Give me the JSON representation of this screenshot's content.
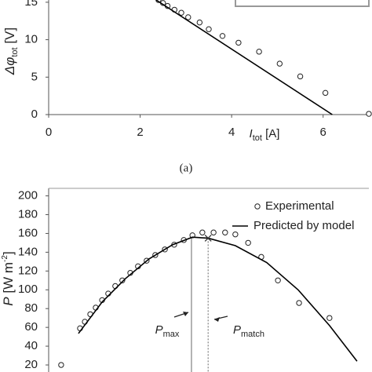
{
  "chart_data": [
    {
      "type": "line",
      "x_label": {
        "main": "I",
        "sub": "tot",
        "unit": " [A]"
      },
      "y_label": {
        "main": "Δφ",
        "sub": "tot",
        "unit": " [V]"
      },
      "caption": "(a)",
      "xlim": [
        0,
        7
      ],
      "xticks": [
        0,
        2,
        4,
        6
      ],
      "ylim": [
        0,
        15.3
      ],
      "yticks": [
        0,
        5,
        10,
        15
      ],
      "series": [
        {
          "mode": "markers",
          "color": "#222222",
          "x": [
            2.4,
            2.5,
            2.6,
            2.75,
            2.9,
            3.05,
            3.3,
            3.5,
            3.8,
            4.15,
            4.6,
            5.05,
            5.5,
            6.05,
            7.0
          ],
          "values": [
            15.3,
            14.9,
            14.5,
            14.0,
            13.6,
            13.0,
            12.3,
            11.4,
            10.5,
            9.6,
            8.4,
            6.8,
            5.1,
            2.9,
            0.1
          ]
        },
        {
          "mode": "line",
          "color": "#000000",
          "x": [
            2.35,
            6.2
          ],
          "values": [
            15.3,
            0
          ]
        }
      ]
    },
    {
      "type": "line",
      "y_label": {
        "main": "P",
        "unit": " [W m",
        "sup": "-2",
        "end": "]"
      },
      "xlim": [
        0,
        10
      ],
      "ylim": [
        12.5,
        208
      ],
      "yticks": [
        20,
        40,
        60,
        80,
        100,
        120,
        140,
        160,
        180,
        200
      ],
      "series": [
        {
          "name": "Experimental",
          "mode": "markers",
          "color": "#222222",
          "x": [
            0.39,
            0.98,
            1.13,
            1.3,
            1.47,
            1.67,
            1.86,
            2.08,
            2.3,
            2.55,
            2.79,
            3.06,
            3.33,
            3.63,
            3.92,
            4.22,
            4.49,
            4.8,
            5.15,
            5.51,
            5.83,
            6.23,
            6.64,
            7.16,
            7.82,
            8.77
          ],
          "values": [
            20,
            59,
            66,
            74,
            81,
            89,
            96,
            104,
            110,
            118,
            125,
            131,
            137,
            143,
            148,
            153,
            158,
            161,
            161,
            161,
            159,
            150,
            135,
            110,
            86,
            70
          ]
        },
        {
          "name": "Predicted by model",
          "mode": "line",
          "color": "#000000",
          "x": [
            0.93,
            1.67,
            2.4,
            3.14,
            3.87,
            4.49,
            4.98,
            5.83,
            6.81,
            7.79,
            8.77,
            9.63
          ],
          "values": [
            53.5,
            87,
            112,
            133,
            148,
            156,
            155,
            147,
            129,
            100,
            62,
            24
          ]
        }
      ],
      "vlines": [
        {
          "x": 4.46,
          "y": 157,
          "style": "solid"
        },
        {
          "x": 4.98,
          "y": 155,
          "style": "dotted"
        }
      ],
      "cross": {
        "x": 4.98,
        "y": 155
      },
      "annotations": [
        {
          "main": "P",
          "sub": "max"
        },
        {
          "main": "P",
          "sub": "match"
        }
      ]
    }
  ]
}
